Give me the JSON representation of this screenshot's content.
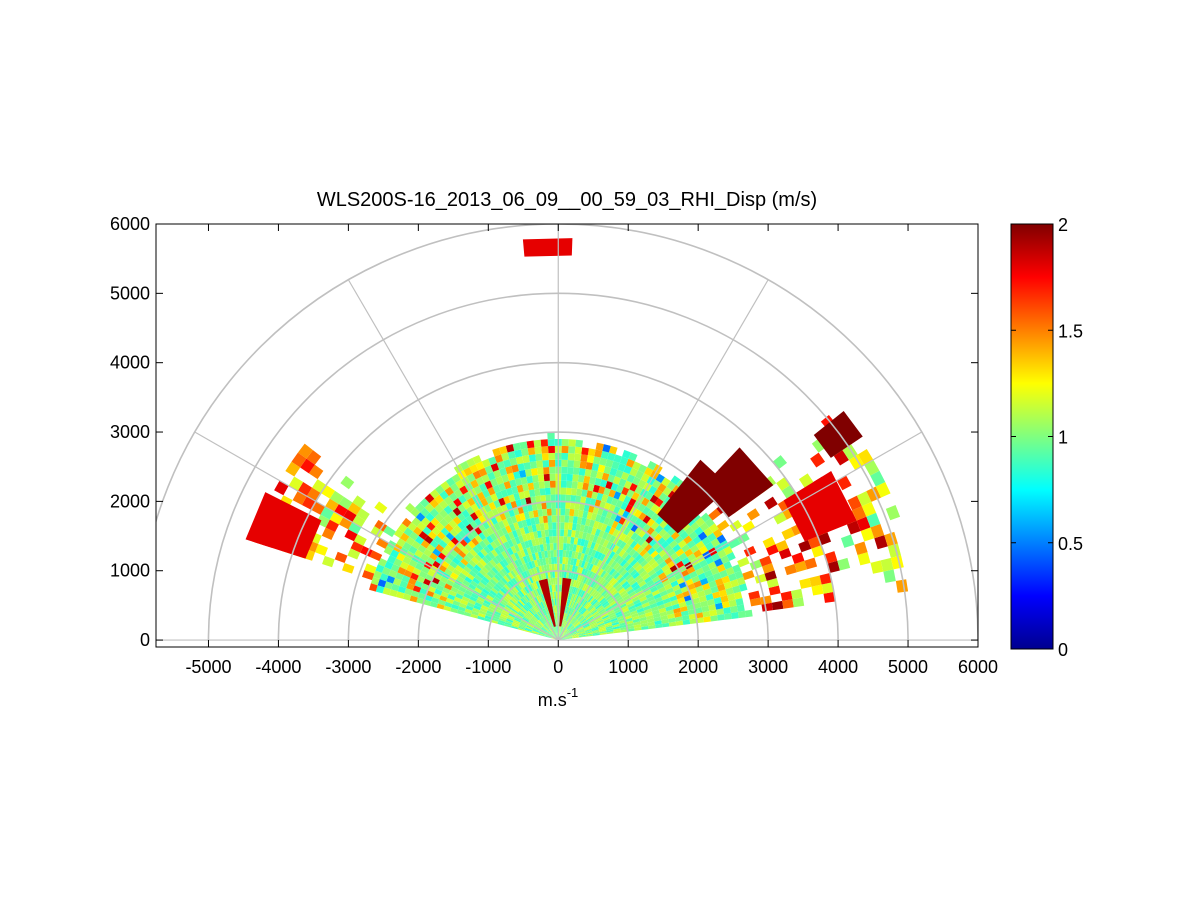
{
  "chart_data": {
    "type": "heatmap",
    "title": "WLS200S-16_2013_06_09__00_59_03_RHI_Disp (m/s)",
    "xlabel_base": "m.s",
    "xlabel_exponent": "-1",
    "ylabel": "",
    "xlim": [
      -5750,
      6000
    ],
    "ylim": [
      -100,
      6000
    ],
    "x_ticks": [
      -5000,
      -4000,
      -3000,
      -2000,
      -1000,
      0,
      1000,
      2000,
      3000,
      4000,
      5000,
      6000
    ],
    "y_ticks": [
      0,
      1000,
      2000,
      3000,
      4000,
      5000,
      6000
    ],
    "polar_grid": {
      "ring_ranges": [
        1000,
        2000,
        3000,
        4000,
        5000,
        6000
      ],
      "spoke_angles_deg": [
        0,
        30,
        60,
        90,
        120,
        150,
        180
      ],
      "grid_color": "#c0c0c0"
    },
    "scan": {
      "elevation_min_deg": 7,
      "elevation_max_deg": 165,
      "max_range_m": 2800,
      "typical_value": 1.0
    },
    "high_value_features": [
      {
        "name": "upper-right-far-band",
        "range_m": [
          4700,
          5250
        ],
        "elevation_deg": [
          34,
          39
        ],
        "value": 2.0
      },
      {
        "name": "right-mid-block",
        "range_m": [
          3000,
          3800
        ],
        "elevation_deg": [
          36,
          47
        ],
        "value": 2.0
      },
      {
        "name": "right-near-block",
        "range_m": [
          2300,
          3300
        ],
        "elevation_deg": [
          42,
          52
        ],
        "value": 2.0
      },
      {
        "name": "right-mid-red",
        "range_m": [
          3800,
          4600
        ],
        "elevation_deg": [
          22,
          32
        ],
        "value": 1.8
      },
      {
        "name": "top-cluster",
        "range_m": [
          5550,
          5800
        ],
        "elevation_deg": [
          88,
          95
        ],
        "value": 1.8
      },
      {
        "name": "left-far-band",
        "range_m": [
          3800,
          4700
        ],
        "elevation_deg": [
          153,
          162
        ],
        "value": 1.8
      },
      {
        "name": "near-origin-left-spike",
        "range_m": [
          200,
          900
        ],
        "elevation_deg": [
          100,
          108
        ],
        "value": 1.9
      },
      {
        "name": "near-origin-right-spike",
        "range_m": [
          200,
          900
        ],
        "elevation_deg": [
          78,
          86
        ],
        "value": 1.9
      }
    ],
    "colorbar": {
      "min": 0,
      "max": 2,
      "ticks": [
        0,
        0.5,
        1,
        1.5,
        2
      ],
      "colormap": "jet",
      "colormap_stops": [
        "#00008f",
        "#0000ff",
        "#00ffff",
        "#ffff00",
        "#ff0000",
        "#800000"
      ]
    }
  }
}
